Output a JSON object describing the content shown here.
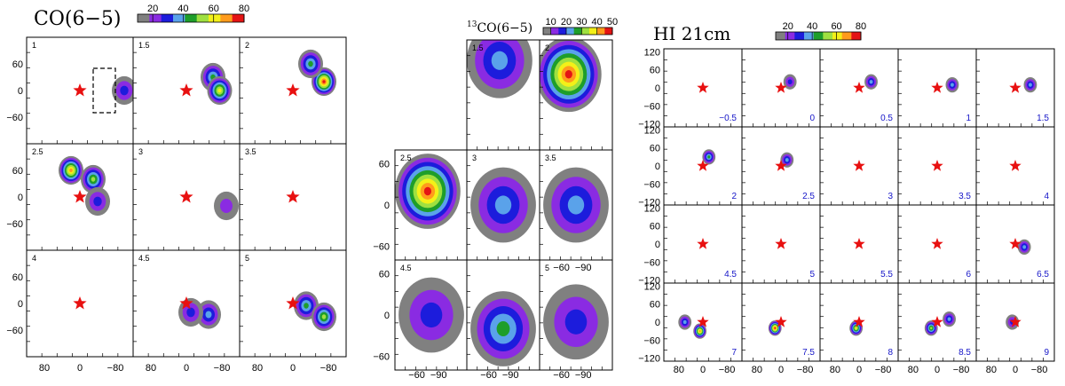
{
  "chart_data": [
    {
      "type": "heatmap",
      "title": "CO(6−5)",
      "colorbar": {
        "ticks": [
          "20",
          "40",
          "60",
          "80"
        ],
        "range": [
          10,
          80
        ]
      },
      "xticks": [
        "80",
        "0",
        "−80"
      ],
      "yticks": [
        "60",
        "0",
        "−60"
      ],
      "xlim": [
        120,
        -120
      ],
      "ylim": [
        -120,
        120
      ],
      "marker": {
        "x": 0,
        "y": 0,
        "shape": "star",
        "color": "#e81010"
      },
      "panels": [
        {
          "label": "1",
          "blobs": [
            {
              "x": -100,
              "y": 0,
              "peak": 25
            }
          ],
          "box": {
            "x0": -30,
            "x1": -80,
            "y0": -50,
            "y1": 50
          }
        },
        {
          "label": "1.5",
          "blobs": [
            {
              "x": -60,
              "y": 30,
              "peak": 45
            },
            {
              "x": -75,
              "y": 0,
              "peak": 60
            }
          ]
        },
        {
          "label": "2",
          "blobs": [
            {
              "x": -70,
              "y": 20,
              "peak": 80
            },
            {
              "x": -40,
              "y": 60,
              "peak": 45
            }
          ]
        },
        {
          "label": "2.5",
          "blobs": [
            {
              "x": 20,
              "y": 60,
              "peak": 70
            },
            {
              "x": -30,
              "y": 40,
              "peak": 55
            },
            {
              "x": -40,
              "y": -10,
              "peak": 30
            }
          ]
        },
        {
          "label": "3",
          "blobs": [
            {
              "x": -90,
              "y": -20,
              "peak": 22
            }
          ]
        },
        {
          "label": "3.5",
          "blobs": []
        },
        {
          "label": "4",
          "blobs": []
        },
        {
          "label": "4.5",
          "blobs": [
            {
              "x": -50,
              "y": -25,
              "peak": 35
            },
            {
              "x": -10,
              "y": -20,
              "peak": 30
            }
          ]
        },
        {
          "label": "5",
          "blobs": [
            {
              "x": -30,
              "y": -5,
              "peak": 45
            },
            {
              "x": -70,
              "y": -30,
              "peak": 50
            }
          ]
        }
      ]
    },
    {
      "type": "heatmap",
      "title": "13CO(6−5)",
      "title_sup": "13",
      "title_main": "CO(6−5)",
      "colorbar": {
        "ticks": [
          "10",
          "20",
          "30",
          "40",
          "50"
        ],
        "range": [
          5,
          50
        ]
      },
      "xticks": [
        "−60",
        "−90"
      ],
      "yticks": [
        "60",
        "0",
        "−60"
      ],
      "panels": [
        {
          "label": "1.5",
          "blobs": [
            {
              "x": -75,
              "y": 50,
              "peak": 20
            }
          ]
        },
        {
          "label": "2",
          "blobs": [
            {
              "x": -70,
              "y": 30,
              "peak": 50
            }
          ]
        },
        {
          "label": "2.5",
          "blobs": [
            {
              "x": -75,
              "y": 20,
              "peak": 50
            }
          ]
        },
        {
          "label": "3",
          "blobs": [
            {
              "x": -80,
              "y": 0,
              "peak": 22
            }
          ]
        },
        {
          "label": "3.5",
          "blobs": [
            {
              "x": -80,
              "y": 0,
              "peak": 20
            }
          ]
        },
        {
          "label": "4.5",
          "blobs": [
            {
              "x": -80,
              "y": 0,
              "peak": 18
            }
          ]
        },
        {
          "label": "",
          "blobs": [
            {
              "x": -80,
              "y": -20,
              "peak": 30
            }
          ]
        },
        {
          "label": "5",
          "blobs": [
            {
              "x": -80,
              "y": -10,
              "peak": 16
            }
          ]
        }
      ]
    },
    {
      "type": "heatmap",
      "title": "HI 21cm",
      "colorbar": {
        "ticks": [
          "20",
          "40",
          "60",
          "80"
        ],
        "range": [
          10,
          80
        ]
      },
      "xticks": [
        "80",
        "0",
        "−80"
      ],
      "yticks": [
        "120",
        "60",
        "0",
        "−60",
        "−120"
      ],
      "xlim": [
        130,
        -130
      ],
      "ylim": [
        -130,
        130
      ],
      "marker": {
        "x": 0,
        "y": 0,
        "shape": "star",
        "color": "#e81010"
      },
      "panels": [
        {
          "label": "−0.5",
          "blobs": []
        },
        {
          "label": "0",
          "blobs": [
            {
              "x": -30,
              "y": 20,
              "peak": 30
            }
          ]
        },
        {
          "label": "0.5",
          "blobs": [
            {
              "x": -40,
              "y": 20,
              "peak": 35
            }
          ]
        },
        {
          "label": "1",
          "blobs": [
            {
              "x": -50,
              "y": 10,
              "peak": 40
            }
          ]
        },
        {
          "label": "1.5",
          "blobs": [
            {
              "x": -50,
              "y": 10,
              "peak": 40
            }
          ]
        },
        {
          "label": "2",
          "blobs": [
            {
              "x": -20,
              "y": 30,
              "peak": 45
            }
          ]
        },
        {
          "label": "2.5",
          "blobs": [
            {
              "x": -20,
              "y": 20,
              "peak": 40
            }
          ]
        },
        {
          "label": "3",
          "blobs": []
        },
        {
          "label": "3.5",
          "blobs": []
        },
        {
          "label": "4",
          "blobs": []
        },
        {
          "label": "4.5",
          "blobs": []
        },
        {
          "label": "5",
          "blobs": []
        },
        {
          "label": "5.5",
          "blobs": []
        },
        {
          "label": "6",
          "blobs": []
        },
        {
          "label": "6.5",
          "blobs": [
            {
              "x": -30,
              "y": -10,
              "peak": 35
            }
          ]
        },
        {
          "label": "7",
          "blobs": [
            {
              "x": 10,
              "y": -30,
              "peak": 70
            },
            {
              "x": 60,
              "y": 0,
              "peak": 40
            }
          ]
        },
        {
          "label": "7.5",
          "blobs": [
            {
              "x": 20,
              "y": -20,
              "peak": 80
            }
          ]
        },
        {
          "label": "8",
          "blobs": [
            {
              "x": 10,
              "y": -20,
              "peak": 60
            }
          ]
        },
        {
          "label": "8.5",
          "blobs": [
            {
              "x": 20,
              "y": -20,
              "peak": 50
            },
            {
              "x": -40,
              "y": 10,
              "peak": 40
            }
          ]
        },
        {
          "label": "9",
          "blobs": [
            {
              "x": 10,
              "y": 0,
              "peak": 30
            }
          ]
        }
      ]
    }
  ]
}
